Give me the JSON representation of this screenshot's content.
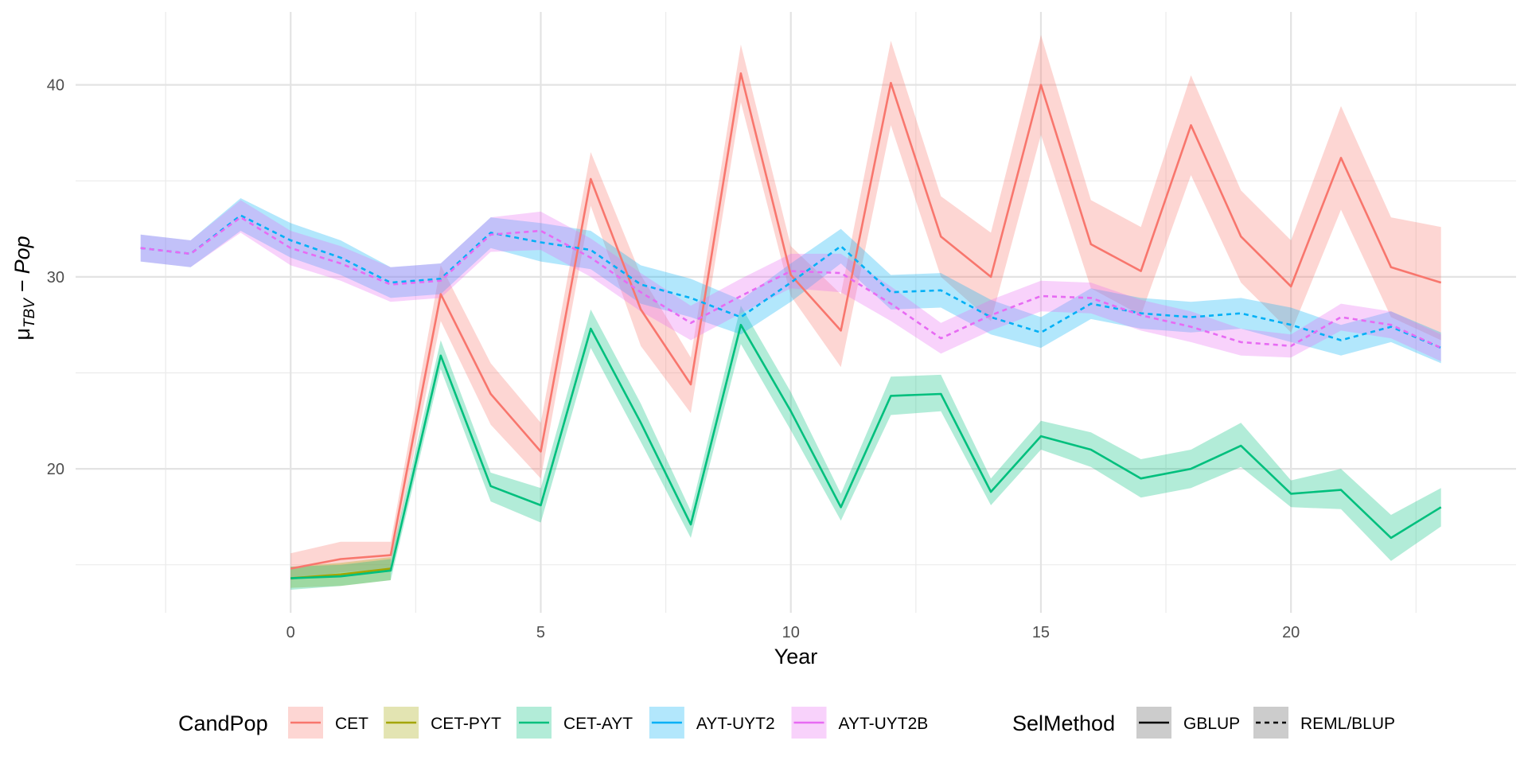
{
  "chart_data": {
    "type": "line",
    "xlabel": "Year",
    "ylabel": {
      "base": "μ",
      "sub": "TBV",
      "rest": " − Pop"
    },
    "xlim": [
      -4.3,
      24.5
    ],
    "ylim": [
      12.5,
      43.8
    ],
    "x_ticks": [
      0,
      5,
      10,
      15,
      20
    ],
    "y_ticks": [
      20,
      30,
      40
    ],
    "grid": true,
    "legend_position": "bottom",
    "legend": {
      "candpop_title": "CandPop",
      "candpop_items": [
        {
          "label": "CET",
          "color": "#F8766D"
        },
        {
          "label": "CET-PYT",
          "color": "#A3A500"
        },
        {
          "label": "CET-AYT",
          "color": "#00BF7D"
        },
        {
          "label": "AYT-UYT2",
          "color": "#00B0F6"
        },
        {
          "label": "AYT-UYT2B",
          "color": "#E76BF3"
        }
      ],
      "selmethod_title": "SelMethod",
      "selmethod_items": [
        {
          "label": "GBLUP",
          "linetype": "solid"
        },
        {
          "label": "REML/BLUP",
          "linetype": "dashed"
        }
      ]
    },
    "series": [
      {
        "name": "CET",
        "color": "#F8766D",
        "linetype": "solid",
        "x": [
          0,
          1,
          2,
          3,
          4,
          5,
          6,
          7,
          8,
          9,
          10,
          11,
          12,
          13,
          14,
          15,
          16,
          17,
          18,
          19,
          20,
          21,
          22,
          23
        ],
        "y": [
          14.8,
          15.3,
          15.5,
          29.1,
          23.9,
          20.9,
          35.1,
          28.3,
          24.4,
          40.6,
          30.1,
          27.2,
          40.1,
          32.1,
          30.0,
          40.0,
          31.7,
          30.3,
          37.9,
          32.1,
          29.5,
          36.2,
          30.5,
          29.7
        ],
        "lo": [
          14.2,
          14.6,
          14.8,
          27.7,
          22.3,
          19.5,
          33.7,
          26.4,
          22.9,
          39.1,
          29.0,
          25.3,
          37.9,
          30.0,
          27.7,
          37.4,
          29.4,
          28.0,
          35.3,
          29.7,
          27.1,
          33.5,
          27.9,
          26.7
        ],
        "hi": [
          15.6,
          16.2,
          16.2,
          30.6,
          25.5,
          22.4,
          36.5,
          30.1,
          25.8,
          42.1,
          31.6,
          29.1,
          42.3,
          34.2,
          32.3,
          42.6,
          34.0,
          32.6,
          40.5,
          34.5,
          31.9,
          38.9,
          33.1,
          32.6
        ]
      },
      {
        "name": "CET-PYT",
        "color": "#A3A500",
        "linetype": "solid",
        "x": [
          0,
          1,
          2
        ],
        "y": [
          14.3,
          14.5,
          14.8
        ],
        "lo": [
          13.8,
          13.9,
          14.2
        ],
        "hi": [
          14.9,
          15.1,
          15.4
        ]
      },
      {
        "name": "CET-AYT",
        "color": "#00BF7D",
        "linetype": "solid",
        "x": [
          0,
          1,
          2,
          3,
          4,
          5,
          6,
          7,
          8,
          9,
          10,
          11,
          12,
          13,
          14,
          15,
          16,
          17,
          18,
          19,
          20,
          21,
          22,
          23
        ],
        "y": [
          14.3,
          14.4,
          14.7,
          25.9,
          19.1,
          18.1,
          27.3,
          22.4,
          17.1,
          27.5,
          23.0,
          18.0,
          23.8,
          23.9,
          18.8,
          21.7,
          21.0,
          19.5,
          20.0,
          21.2,
          18.7,
          18.9,
          16.4,
          18.0
        ],
        "lo": [
          13.7,
          13.9,
          14.2,
          25.2,
          18.3,
          17.2,
          26.3,
          21.4,
          16.4,
          26.5,
          22.0,
          17.3,
          22.8,
          23.0,
          18.1,
          21.0,
          20.1,
          18.5,
          19.0,
          20.1,
          18.0,
          17.9,
          15.2,
          17.0
        ],
        "hi": [
          14.9,
          15.0,
          15.3,
          26.7,
          19.8,
          19.0,
          28.3,
          23.4,
          17.8,
          28.5,
          24.0,
          18.7,
          24.8,
          24.9,
          19.5,
          22.5,
          21.9,
          20.5,
          21.0,
          22.4,
          19.4,
          20.0,
          17.6,
          19.0
        ]
      },
      {
        "name": "AYT-UYT2",
        "color": "#00B0F6",
        "linetype": "dashed",
        "x": [
          -3,
          -2,
          -1,
          0,
          1,
          2,
          3,
          4,
          5,
          6,
          7,
          8,
          9,
          10,
          11,
          12,
          13,
          14,
          15,
          16,
          17,
          18,
          19,
          20,
          21,
          22,
          23
        ],
        "y": [
          31.5,
          31.2,
          33.2,
          31.9,
          31.0,
          29.7,
          29.9,
          32.3,
          31.8,
          31.4,
          29.6,
          28.9,
          27.9,
          29.7,
          31.6,
          29.2,
          29.3,
          27.9,
          27.1,
          28.6,
          28.1,
          27.9,
          28.1,
          27.5,
          26.7,
          27.4,
          26.3
        ],
        "lo": [
          30.8,
          30.5,
          32.4,
          31.0,
          30.1,
          28.9,
          29.1,
          31.5,
          30.8,
          30.4,
          28.6,
          27.9,
          27.0,
          28.7,
          30.7,
          28.3,
          28.4,
          27.0,
          26.3,
          27.8,
          27.3,
          27.1,
          27.3,
          26.6,
          25.9,
          26.6,
          25.5
        ],
        "hi": [
          32.2,
          31.9,
          34.1,
          32.8,
          31.9,
          30.5,
          30.7,
          33.1,
          32.8,
          32.4,
          30.6,
          29.9,
          28.8,
          30.7,
          32.5,
          30.1,
          30.2,
          28.8,
          27.9,
          29.4,
          28.9,
          28.7,
          28.9,
          28.4,
          27.5,
          28.2,
          27.1
        ]
      },
      {
        "name": "AYT-UYT2B",
        "color": "#E76BF3",
        "linetype": "dashed",
        "x": [
          -3,
          -2,
          -1,
          0,
          1,
          2,
          3,
          4,
          5,
          6,
          7,
          8,
          9,
          10,
          11,
          12,
          13,
          14,
          15,
          16,
          17,
          18,
          19,
          20,
          21,
          22,
          23
        ],
        "y": [
          31.5,
          31.2,
          33.1,
          31.5,
          30.7,
          29.6,
          29.8,
          32.2,
          32.4,
          31.0,
          29.2,
          27.6,
          29.0,
          30.3,
          30.2,
          28.6,
          26.8,
          28.0,
          29.0,
          28.9,
          28.0,
          27.4,
          26.6,
          26.4,
          27.9,
          27.5,
          26.3
        ],
        "lo": [
          30.8,
          30.5,
          32.3,
          30.6,
          29.8,
          28.7,
          28.9,
          31.3,
          31.4,
          30.0,
          28.2,
          26.7,
          28.1,
          29.4,
          29.2,
          27.7,
          26.0,
          27.2,
          28.2,
          28.1,
          27.2,
          26.6,
          25.9,
          25.8,
          27.2,
          26.8,
          25.6
        ],
        "hi": [
          32.2,
          31.9,
          34.0,
          32.4,
          31.6,
          30.5,
          30.7,
          33.1,
          33.4,
          32.0,
          30.2,
          28.5,
          29.9,
          31.2,
          31.2,
          29.5,
          27.6,
          28.8,
          29.8,
          29.7,
          28.8,
          28.2,
          27.3,
          27.0,
          28.6,
          28.2,
          27.0
        ]
      }
    ]
  }
}
